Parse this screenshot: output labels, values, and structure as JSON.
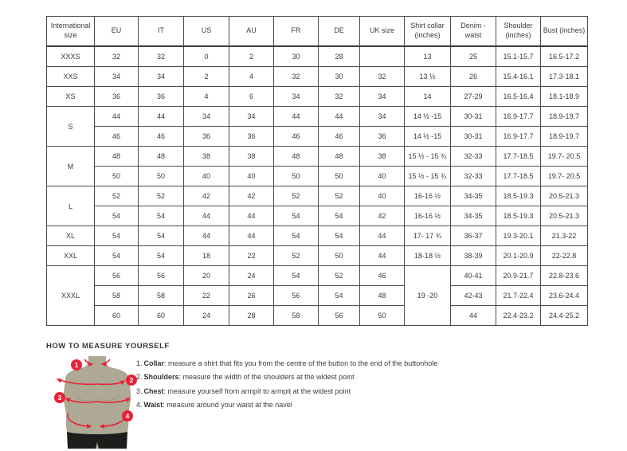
{
  "table": {
    "headers": [
      "International size",
      "EU",
      "IT",
      "US",
      "AU",
      "FR",
      "DE",
      "UK size",
      "Shirt collar (inches)",
      "Denim - waist",
      "Shoulder (inches)",
      "Bust (inches)"
    ],
    "rows": [
      [
        {
          "t": "XXXS"
        },
        {
          "t": "32"
        },
        {
          "t": "32"
        },
        {
          "t": "0"
        },
        {
          "t": "2"
        },
        {
          "t": "30"
        },
        {
          "t": "28"
        },
        {
          "t": ""
        },
        {
          "t": "13"
        },
        {
          "t": "25"
        },
        {
          "t": "15.1-15.7"
        },
        {
          "t": "16.5-17.2"
        }
      ],
      [
        {
          "t": "XXS"
        },
        {
          "t": "34"
        },
        {
          "t": "34"
        },
        {
          "t": "2"
        },
        {
          "t": "4"
        },
        {
          "t": "32"
        },
        {
          "t": "30"
        },
        {
          "t": "32"
        },
        {
          "t": "13 ½"
        },
        {
          "t": "26"
        },
        {
          "t": "15.4-16.1"
        },
        {
          "t": "17.3-18.1"
        }
      ],
      [
        {
          "t": "XS"
        },
        {
          "t": "36"
        },
        {
          "t": "36"
        },
        {
          "t": "4"
        },
        {
          "t": "6"
        },
        {
          "t": "34"
        },
        {
          "t": "32"
        },
        {
          "t": "34"
        },
        {
          "t": "14"
        },
        {
          "t": "27-29"
        },
        {
          "t": "16.5-16.4"
        },
        {
          "t": "18.1-18.9"
        }
      ],
      [
        {
          "t": "S",
          "rs": 2
        },
        {
          "t": "44"
        },
        {
          "t": "44"
        },
        {
          "t": "34"
        },
        {
          "t": "34"
        },
        {
          "t": "44"
        },
        {
          "t": "44"
        },
        {
          "t": "34"
        },
        {
          "t": "14 ½ -15"
        },
        {
          "t": "30-31"
        },
        {
          "t": "16.9-17.7"
        },
        {
          "t": "18.9-19.7"
        }
      ],
      [
        {
          "t": "46"
        },
        {
          "t": "46"
        },
        {
          "t": "36"
        },
        {
          "t": "36"
        },
        {
          "t": "46"
        },
        {
          "t": "46"
        },
        {
          "t": "36"
        },
        {
          "t": "14 ½ -15"
        },
        {
          "t": "30-31"
        },
        {
          "t": "16.9-17.7"
        },
        {
          "t": "18.9-19.7"
        }
      ],
      [
        {
          "t": "M",
          "rs": 2
        },
        {
          "t": "48"
        },
        {
          "t": "48"
        },
        {
          "t": "38"
        },
        {
          "t": "38"
        },
        {
          "t": "48"
        },
        {
          "t": "48"
        },
        {
          "t": "38"
        },
        {
          "t": "15 ½ - 15 ¾"
        },
        {
          "t": "32-33"
        },
        {
          "t": "17.7-18.5"
        },
        {
          "t": "19.7- 20.5"
        }
      ],
      [
        {
          "t": "50"
        },
        {
          "t": "50"
        },
        {
          "t": "40"
        },
        {
          "t": "40"
        },
        {
          "t": "50"
        },
        {
          "t": "50"
        },
        {
          "t": "40"
        },
        {
          "t": "15 ½ - 15 ¾"
        },
        {
          "t": "32-33"
        },
        {
          "t": "17.7-18.5"
        },
        {
          "t": "19.7- 20.5"
        }
      ],
      [
        {
          "t": "L",
          "rs": 2
        },
        {
          "t": "52"
        },
        {
          "t": "52"
        },
        {
          "t": "42"
        },
        {
          "t": "42"
        },
        {
          "t": "52"
        },
        {
          "t": "52"
        },
        {
          "t": "40"
        },
        {
          "t": "16-16 ½"
        },
        {
          "t": "34-35"
        },
        {
          "t": "18.5-19.3"
        },
        {
          "t": "20.5-21.3"
        }
      ],
      [
        {
          "t": "54"
        },
        {
          "t": "54"
        },
        {
          "t": "44"
        },
        {
          "t": "44"
        },
        {
          "t": "54"
        },
        {
          "t": "54"
        },
        {
          "t": "42"
        },
        {
          "t": "16-16 ½"
        },
        {
          "t": "34-35"
        },
        {
          "t": "18.5-19.3"
        },
        {
          "t": "20.5-21.3"
        }
      ],
      [
        {
          "t": "XL"
        },
        {
          "t": "54"
        },
        {
          "t": "54"
        },
        {
          "t": "44"
        },
        {
          "t": "44"
        },
        {
          "t": "54"
        },
        {
          "t": "54"
        },
        {
          "t": "44"
        },
        {
          "t": "17- 17 ¾"
        },
        {
          "t": "36-37"
        },
        {
          "t": "19.3-20.1"
        },
        {
          "t": "21.3-22"
        }
      ],
      [
        {
          "t": "XXL"
        },
        {
          "t": "54"
        },
        {
          "t": "54"
        },
        {
          "t": "18"
        },
        {
          "t": "22"
        },
        {
          "t": "52"
        },
        {
          "t": "50"
        },
        {
          "t": "44"
        },
        {
          "t": "18-18 ½"
        },
        {
          "t": "38-39"
        },
        {
          "t": "20.1-20.9"
        },
        {
          "t": "22-22.8"
        }
      ],
      [
        {
          "t": "XXXL",
          "rs": 3
        },
        {
          "t": "56"
        },
        {
          "t": "56"
        },
        {
          "t": "20"
        },
        {
          "t": "24"
        },
        {
          "t": "54"
        },
        {
          "t": "52"
        },
        {
          "t": "46"
        },
        {
          "t": "19 -20",
          "rs": 3
        },
        {
          "t": "40-41"
        },
        {
          "t": "20.9-21.7"
        },
        {
          "t": "22.8-23.6"
        }
      ],
      [
        {
          "t": "58"
        },
        {
          "t": "58"
        },
        {
          "t": "22"
        },
        {
          "t": "26"
        },
        {
          "t": "56"
        },
        {
          "t": "54"
        },
        {
          "t": "48"
        },
        {
          "t": "42-43"
        },
        {
          "t": "21.7-22.4"
        },
        {
          "t": "23.6-24.4"
        }
      ],
      [
        {
          "t": "60"
        },
        {
          "t": "60"
        },
        {
          "t": "24"
        },
        {
          "t": "28"
        },
        {
          "t": "58"
        },
        {
          "t": "56"
        },
        {
          "t": "50"
        },
        {
          "t": "44"
        },
        {
          "t": "22.4-23.2"
        },
        {
          "t": "24.4-25.2"
        }
      ]
    ]
  },
  "measure": {
    "heading": "HOW TO MEASURE YOURSELF",
    "items": [
      {
        "num": "1.",
        "label": "Collar",
        "text": ": measure a shirt that fits you from the centre of the button to the end of the buttonhole"
      },
      {
        "num": "2.",
        "label": "Shoulders",
        "text": ": measure the width of the shoulders at the widest point"
      },
      {
        "num": "3.",
        "label": "Chest",
        "text": ": measure yourself from armpit to armpit at the widest point"
      },
      {
        "num": "4.",
        "label": "Waist",
        "text": ": measure around your waist at the navel"
      }
    ],
    "markers": [
      "1",
      "2",
      "3",
      "4"
    ]
  },
  "colors": {
    "accent_red": "#e8223a",
    "torso": "#ada995",
    "shorts": "#1d1d1b",
    "text": "#3b3b3b",
    "border": "#4c4c4c"
  }
}
